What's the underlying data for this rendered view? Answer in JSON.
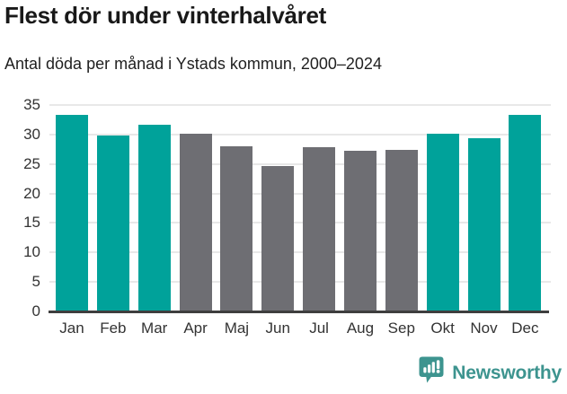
{
  "header": {
    "title": "Flest dör under vinterhalvåret",
    "subtitle": "Antal döda per månad i Ystads kommun, 2000–2024"
  },
  "chart_data": {
    "type": "bar",
    "title": "Flest dör under vinterhalvåret",
    "subtitle": "Antal döda per månad i Ystads kommun, 2000–2024",
    "categories": [
      "Jan",
      "Feb",
      "Mar",
      "Apr",
      "Maj",
      "Jun",
      "Jul",
      "Aug",
      "Sep",
      "Okt",
      "Nov",
      "Dec"
    ],
    "values": [
      33.4,
      29.9,
      31.6,
      30.1,
      28.0,
      24.6,
      27.9,
      27.2,
      27.4,
      30.1,
      29.3,
      33.3
    ],
    "bar_colors": [
      "highlight",
      "highlight",
      "highlight",
      "base",
      "base",
      "base",
      "base",
      "base",
      "base",
      "highlight",
      "highlight",
      "highlight"
    ],
    "colors": {
      "highlight": "#00a29a",
      "base": "#6e6e73"
    },
    "xlabel": "",
    "ylabel": "",
    "ylim": [
      0,
      35
    ],
    "yticks": [
      0,
      5,
      10,
      15,
      20,
      25,
      30,
      35
    ],
    "grid": true,
    "legend": "none",
    "grid_color": "#e8e8e8",
    "axis_line_color": "#3e3e3e"
  },
  "footer": {
    "brand": "Newsworthy",
    "logo_icon": "speech-bubble-bar-chart-icon",
    "brand_color": "#3d948f"
  }
}
